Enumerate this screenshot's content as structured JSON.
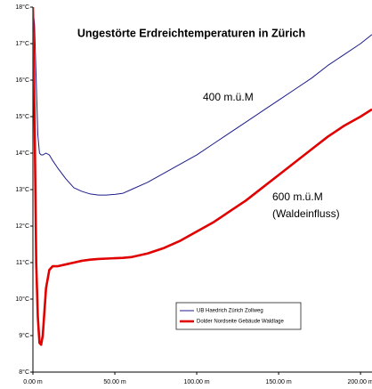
{
  "chart_data": {
    "type": "line",
    "title": "Ungestörte Erdreichtemperaturen in Zürich",
    "annotations": [
      "400 m.ü.M",
      "600 m.ü.M",
      "(Waldeinfluss)"
    ],
    "x": [
      0,
      1,
      2,
      3,
      4,
      5,
      6,
      8,
      10,
      12,
      15,
      20,
      25,
      30,
      35,
      40,
      45,
      50,
      55,
      60,
      70,
      80,
      90,
      100,
      110,
      120,
      130,
      140,
      150,
      160,
      170,
      180,
      190,
      200,
      207
    ],
    "series": [
      {
        "name": "UB Haedrich Zürich Zollweg",
        "color": "#1c1c8a",
        "values": [
          18,
          17.5,
          16,
          14.5,
          14,
          13.95,
          13.95,
          14,
          13.95,
          13.8,
          13.6,
          13.3,
          13.05,
          12.95,
          12.88,
          12.85,
          12.85,
          12.87,
          12.9,
          13.0,
          13.2,
          13.45,
          13.7,
          13.95,
          14.25,
          14.55,
          14.85,
          15.15,
          15.45,
          15.75,
          16.05,
          16.4,
          16.7,
          17.0,
          17.25
        ]
      },
      {
        "name": "Dolder Nordseite Gebäude Waldlage",
        "color": "#e00000",
        "values": [
          18,
          15,
          11,
          9.5,
          8.8,
          8.75,
          9.0,
          10.3,
          10.8,
          10.9,
          10.9,
          10.95,
          11.0,
          11.05,
          11.08,
          11.1,
          11.11,
          11.12,
          11.13,
          11.15,
          11.25,
          11.4,
          11.6,
          11.85,
          12.1,
          12.4,
          12.7,
          13.05,
          13.4,
          13.75,
          14.1,
          14.45,
          14.75,
          15.0,
          15.2
        ]
      }
    ],
    "xlim": [
      0,
      207
    ],
    "xticks": [
      {
        "value": 0,
        "label": "0.00 m"
      },
      {
        "value": 50,
        "label": "50.00 m"
      },
      {
        "value": 100,
        "label": "100.00 m"
      },
      {
        "value": 150,
        "label": "150.00 m"
      },
      {
        "value": 200,
        "label": "200.00 m"
      }
    ],
    "ylim": [
      8,
      18
    ],
    "yticks": [
      {
        "value": 8,
        "label": "8°C"
      },
      {
        "value": 9,
        "label": "9°C"
      },
      {
        "value": 10,
        "label": "10°C"
      },
      {
        "value": 11,
        "label": "11°C"
      },
      {
        "value": 12,
        "label": "12°C"
      },
      {
        "value": 13,
        "label": "13°C"
      },
      {
        "value": 14,
        "label": "14°C"
      },
      {
        "value": 15,
        "label": "15°C"
      },
      {
        "value": 16,
        "label": "16°C"
      },
      {
        "value": 17,
        "label": "17°C"
      },
      {
        "value": 18,
        "label": "18°C"
      }
    ],
    "grid": false
  }
}
